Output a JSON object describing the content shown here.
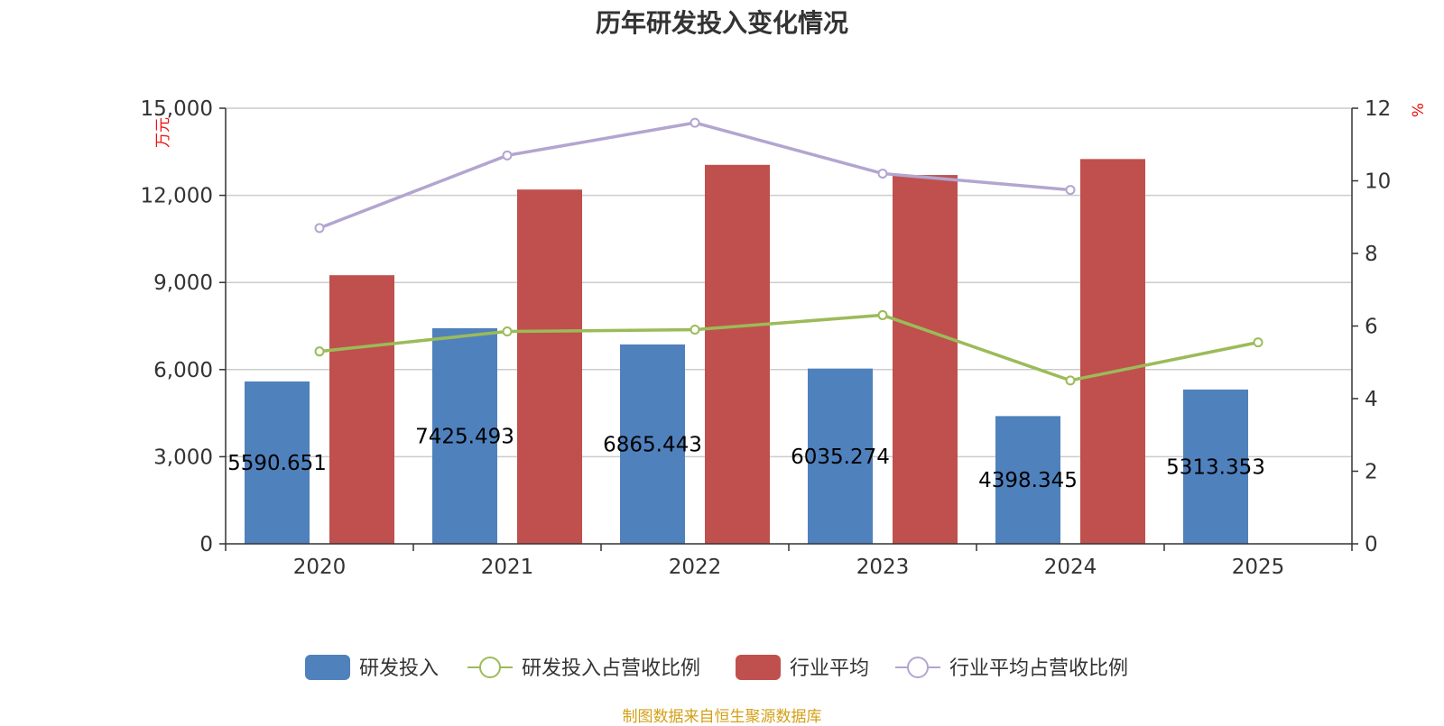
{
  "title": "历年研发投入变化情况",
  "footer": "制图数据来自恒生聚源数据库",
  "chart_data": {
    "type": "bar",
    "categories": [
      "2020",
      "2021",
      "2022",
      "2023",
      "2024",
      "2025"
    ],
    "left_axis": {
      "unit": "万元",
      "ylim": [
        0,
        15000
      ],
      "ticks": [
        "0",
        "3,000",
        "6,000",
        "9,000",
        "12,000",
        "15,000"
      ]
    },
    "right_axis": {
      "unit": "%",
      "ylim": [
        0,
        12
      ],
      "ticks": [
        "0",
        "2",
        "4",
        "6",
        "8",
        "10",
        "12"
      ]
    },
    "series": [
      {
        "name": "研发投入",
        "type": "bar",
        "axis": "left",
        "color": "#4f81bd",
        "values": [
          5590.651,
          7425.493,
          6865.443,
          6035.274,
          4398.345,
          5313.353
        ],
        "labels": [
          "5590.651",
          "7425.493",
          "6865.443",
          "6035.274",
          "4398.345",
          "5313.353"
        ]
      },
      {
        "name": "研发投入占营收比例",
        "type": "line",
        "axis": "right",
        "color": "#9bbb59",
        "values": [
          5.3,
          5.85,
          5.9,
          6.3,
          4.5,
          5.55
        ]
      },
      {
        "name": "行业平均",
        "type": "bar",
        "axis": "left",
        "color": "#c0504d",
        "values": [
          9250,
          12200,
          13050,
          12700,
          13250,
          null
        ]
      },
      {
        "name": "行业平均占营收比例",
        "type": "line",
        "axis": "right",
        "color": "#b3a5d0",
        "values": [
          8.7,
          10.7,
          11.6,
          10.2,
          9.75,
          null
        ]
      }
    ],
    "grid": true,
    "legend": "bottom"
  }
}
